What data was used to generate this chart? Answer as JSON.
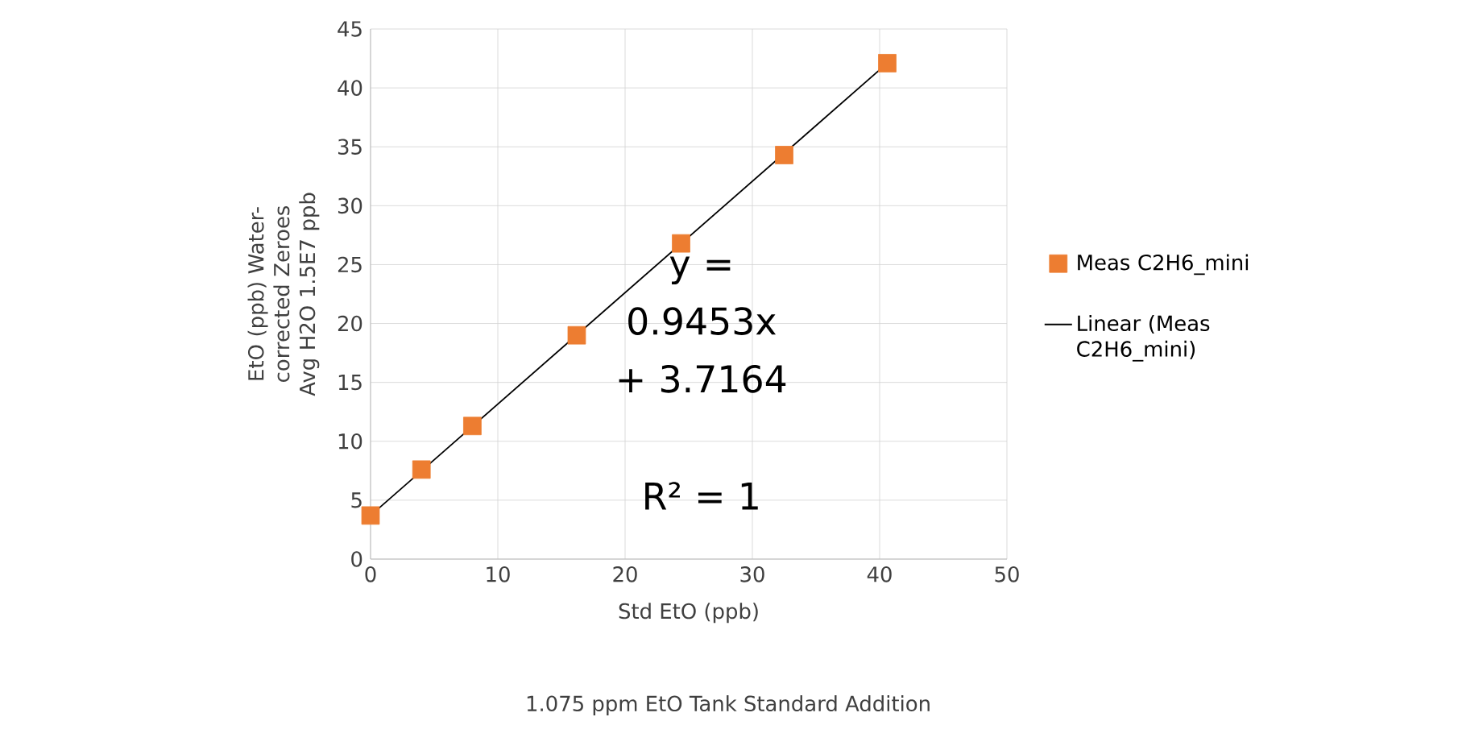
{
  "chart_data": {
    "type": "scatter",
    "xlabel": "Std EtO (ppb)",
    "ylabel": "EtO (ppb) Water-corrected Zeroes Avg H2O 1.5E7 ppb",
    "annotations": [
      "y = 0.9453x + 3.7164",
      "R² = 1",
      "1.075 ppm EtO Tank Standard Addition"
    ],
    "series": [
      {
        "name": "Meas C2H6_mini",
        "color": "#ed7d31",
        "marker": "square",
        "x": [
          0,
          4,
          8,
          16.2,
          24.4,
          32.5,
          40.6
        ],
        "values": [
          3.7,
          7.6,
          11.3,
          19.0,
          26.8,
          34.3,
          42.1
        ]
      },
      {
        "name": "Linear (Meas C2H6_mini)",
        "type": "line",
        "color": "#000000",
        "marker": "none",
        "line_style": "solid",
        "x": [
          0,
          40.6
        ],
        "values": [
          3.7,
          42.1
        ]
      }
    ],
    "xlim": [
      0,
      50
    ],
    "xticks": [
      0,
      10,
      20,
      30,
      40,
      50
    ],
    "ylim": [
      0,
      45
    ],
    "yticks": [
      0,
      5,
      10,
      15,
      20,
      25,
      30,
      35,
      40,
      45
    ],
    "grid": true,
    "legend": "right"
  }
}
